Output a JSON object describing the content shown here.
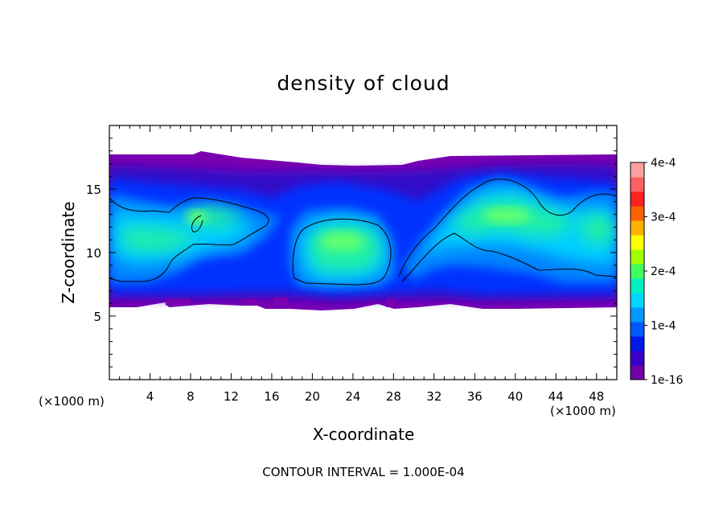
{
  "chart_data": {
    "type": "heatmap",
    "title": "density of cloud",
    "xlabel": "X-coordinate",
    "ylabel": "Z-coordinate",
    "x_unit": "(×1000 m)",
    "x_unit_right": "(×1000 m)",
    "xlim": [
      0,
      50
    ],
    "ylim": [
      0,
      20
    ],
    "xticks": [
      4,
      8,
      12,
      16,
      20,
      24,
      28,
      32,
      36,
      40,
      44,
      48
    ],
    "yticks": [
      5,
      10,
      15
    ],
    "colorbar": {
      "range": [
        0,
        0.0004
      ],
      "ticks": [
        {
          "value": 0,
          "label": "1e-16"
        },
        {
          "value": 0.0001,
          "label": "1e-4"
        },
        {
          "value": 0.0002,
          "label": "2e-4"
        },
        {
          "value": 0.0003,
          "label": "3e-4"
        },
        {
          "value": 0.0004,
          "label": "4e-4"
        }
      ],
      "colors": [
        "#7000a8",
        "#3a00c8",
        "#0018e8",
        "#0058ff",
        "#0098ff",
        "#00d4ff",
        "#00f0c0",
        "#40ff60",
        "#a0ff00",
        "#ffff00",
        "#ffb000",
        "#ff6000",
        "#ff2020",
        "#ff6060",
        "#ffa0a0"
      ]
    },
    "contour_interval": "CONTOUR INTERVAL = 1.000E-04",
    "cloud_layer": {
      "z_base": 6,
      "z_top": 17.5
    },
    "features": [
      {
        "x": 10,
        "z": 11.5,
        "value": 0.00017
      },
      {
        "x": 22,
        "z": 10.6,
        "value": 0.00016
      },
      {
        "x": 38,
        "z": 12.0,
        "value": 0.00017
      },
      {
        "x": 47,
        "z": 11.5,
        "value": 0.00015
      },
      {
        "x": 3,
        "z": 11.0,
        "value": 0.00014
      },
      {
        "x": 30,
        "z": 9.5,
        "value": 0.0001
      }
    ]
  }
}
